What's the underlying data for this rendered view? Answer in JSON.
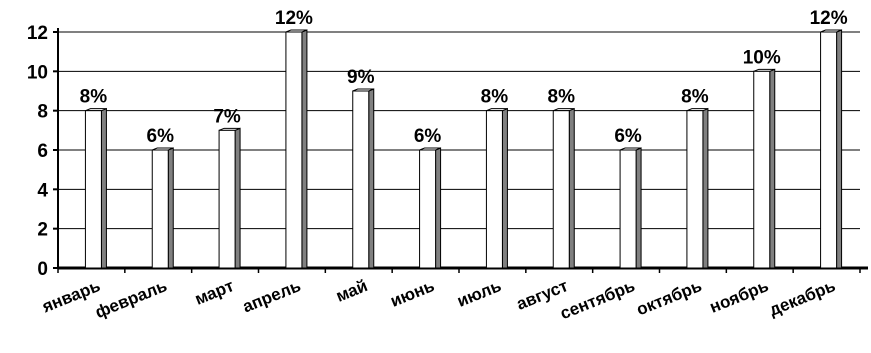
{
  "chart_data": {
    "type": "bar",
    "categories": [
      "январь",
      "февраль",
      "март",
      "апрель",
      "май",
      "июнь",
      "июль",
      "август",
      "сентябрь",
      "октябрь",
      "ноябрь",
      "декабрь"
    ],
    "values": [
      8,
      6,
      7,
      12,
      9,
      6,
      8,
      8,
      6,
      8,
      10,
      12
    ],
    "data_labels": [
      "8%",
      "6%",
      "7%",
      "12%",
      "9%",
      "6%",
      "8%",
      "8%",
      "6%",
      "8%",
      "10%",
      "12%"
    ],
    "y_ticks": [
      "0",
      "2",
      "4",
      "6",
      "8",
      "10",
      "12"
    ],
    "ylim": [
      0,
      12
    ],
    "title": "",
    "xlabel": "",
    "ylabel": "",
    "grid": true,
    "legend": "none",
    "bar_style": "3d",
    "colors": {
      "bar_front": "#ffffff",
      "bar_side": "#808080",
      "bar_outline": "#000000",
      "grid": "#000000"
    }
  }
}
